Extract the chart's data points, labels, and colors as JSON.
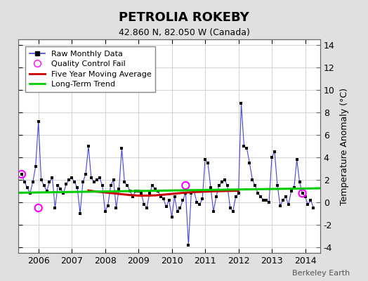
{
  "title": "PETROLIA ROKEBY",
  "subtitle": "42.860 N, 82.050 W (Canada)",
  "ylabel": "Temperature Anomaly (°C)",
  "watermark": "Berkeley Earth",
  "ylim": [
    -4.5,
    14.5
  ],
  "yticks": [
    -4,
    -2,
    0,
    2,
    4,
    6,
    8,
    10,
    12,
    14
  ],
  "xlim": [
    2005.4,
    2014.45
  ],
  "outer_bg_color": "#e0e0e0",
  "plot_bg_color": "#ffffff",
  "raw_color": "#4444dd",
  "raw_marker_color": "#000000",
  "moving_avg_color": "#cc0000",
  "trend_color": "#00cc00",
  "qc_fail_color": "#ff00ff",
  "raw_data_x": [
    2005.5,
    2005.583,
    2005.667,
    2005.75,
    2005.833,
    2005.917,
    2006.0,
    2006.083,
    2006.167,
    2006.25,
    2006.333,
    2006.417,
    2006.5,
    2006.583,
    2006.667,
    2006.75,
    2006.833,
    2006.917,
    2007.0,
    2007.083,
    2007.167,
    2007.25,
    2007.333,
    2007.417,
    2007.5,
    2007.583,
    2007.667,
    2007.75,
    2007.833,
    2007.917,
    2008.0,
    2008.083,
    2008.167,
    2008.25,
    2008.333,
    2008.417,
    2008.5,
    2008.583,
    2008.667,
    2008.75,
    2008.833,
    2008.917,
    2009.0,
    2009.083,
    2009.167,
    2009.25,
    2009.333,
    2009.417,
    2009.5,
    2009.583,
    2009.667,
    2009.75,
    2009.833,
    2009.917,
    2010.0,
    2010.083,
    2010.167,
    2010.25,
    2010.333,
    2010.417,
    2010.5,
    2010.583,
    2010.667,
    2010.75,
    2010.833,
    2010.917,
    2011.0,
    2011.083,
    2011.167,
    2011.25,
    2011.333,
    2011.417,
    2011.5,
    2011.583,
    2011.667,
    2011.75,
    2011.833,
    2011.917,
    2012.0,
    2012.083,
    2012.167,
    2012.25,
    2012.333,
    2012.417,
    2012.5,
    2012.583,
    2012.667,
    2012.75,
    2012.833,
    2012.917,
    2013.0,
    2013.083,
    2013.167,
    2013.25,
    2013.333,
    2013.417,
    2013.5,
    2013.583,
    2013.667,
    2013.75,
    2013.833,
    2013.917,
    2014.0,
    2014.083,
    2014.167,
    2014.25
  ],
  "raw_data_y": [
    2.5,
    1.8,
    1.3,
    0.8,
    1.8,
    3.2,
    7.2,
    2.0,
    1.5,
    1.0,
    1.8,
    2.2,
    -0.5,
    1.5,
    1.2,
    0.8,
    1.6,
    2.0,
    2.2,
    1.8,
    1.3,
    -1.0,
    1.8,
    2.5,
    5.0,
    2.2,
    1.8,
    2.0,
    2.2,
    1.5,
    -0.8,
    -0.3,
    1.5,
    2.0,
    -0.5,
    1.2,
    4.8,
    1.8,
    1.5,
    1.0,
    0.5,
    1.0,
    1.0,
    0.8,
    -0.2,
    -0.5,
    0.8,
    1.5,
    1.2,
    1.0,
    0.5,
    0.3,
    -0.4,
    0.2,
    -1.3,
    0.5,
    -0.8,
    -0.5,
    0.2,
    0.8,
    -3.8,
    0.8,
    1.0,
    0.0,
    -0.2,
    0.3,
    3.8,
    3.5,
    1.3,
    -0.8,
    0.5,
    1.5,
    1.8,
    2.0,
    1.5,
    -0.5,
    -0.8,
    0.5,
    0.8,
    8.8,
    5.0,
    4.8,
    3.5,
    2.0,
    1.5,
    0.8,
    0.5,
    0.2,
    0.2,
    0.0,
    4.0,
    4.5,
    1.5,
    -0.3,
    0.2,
    0.5,
    -0.2,
    1.0,
    1.3,
    3.8,
    1.8,
    0.8,
    0.5,
    -0.2,
    0.2,
    -0.5
  ],
  "qc_fail_points_x": [
    2005.5,
    2006.0,
    2010.417,
    2013.917
  ],
  "qc_fail_points_y": [
    2.5,
    -0.5,
    1.5,
    0.8
  ],
  "moving_avg_x": [
    2007.5,
    2007.75,
    2008.0,
    2008.25,
    2008.5,
    2008.75,
    2009.0,
    2009.25,
    2009.5,
    2009.75,
    2010.0,
    2010.25,
    2010.5,
    2010.75,
    2011.0,
    2011.25,
    2011.5,
    2011.75,
    2012.0
  ],
  "moving_avg_y": [
    1.05,
    0.95,
    0.88,
    0.8,
    0.72,
    0.65,
    0.6,
    0.6,
    0.62,
    0.68,
    0.75,
    0.82,
    0.88,
    0.92,
    0.95,
    0.98,
    1.0,
    1.02,
    1.03
  ],
  "trend_x": [
    2005.4,
    2014.45
  ],
  "trend_y": [
    0.85,
    1.25
  ],
  "xticks": [
    2006,
    2007,
    2008,
    2009,
    2010,
    2011,
    2012,
    2013,
    2014
  ],
  "xticklabels": [
    "2006",
    "2007",
    "2008",
    "2009",
    "2010",
    "2011",
    "2012",
    "2013",
    "2014"
  ]
}
